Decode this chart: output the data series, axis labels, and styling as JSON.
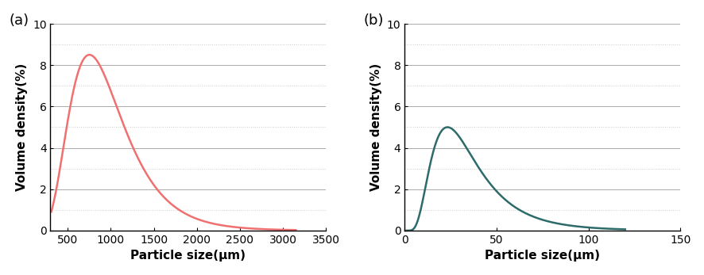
{
  "panel_a": {
    "label": "(a)",
    "color": "#f07070",
    "xlim": [
      300,
      3500
    ],
    "xticks": [
      500,
      1000,
      1500,
      2000,
      2500,
      3000,
      3500
    ],
    "ylim": [
      0,
      10
    ],
    "yticks": [
      0,
      2,
      4,
      6,
      8,
      10
    ],
    "xlabel": "Particle size(μm)",
    "ylabel": "Volume density(%)",
    "mu": 6.8,
    "sigma": 0.42,
    "peak_y": 8.5,
    "x_start": 310,
    "x_end": 3150,
    "n_points": 800
  },
  "panel_b": {
    "label": "(b)",
    "color": "#2d6b6a",
    "xlim": [
      0,
      150
    ],
    "xticks": [
      0,
      50,
      100,
      150
    ],
    "ylim": [
      0,
      10
    ],
    "yticks": [
      0,
      2,
      4,
      6,
      8,
      10
    ],
    "xlabel": "Particle size(μm)",
    "ylabel": "Volume density(%)",
    "mu": 3.45,
    "sigma": 0.55,
    "peak_y": 5.0,
    "x_start": 1,
    "x_end": 120,
    "n_points": 800
  },
  "solid_grid_color": "#aaaaaa",
  "dotted_grid_color": "#cccccc",
  "tick_fontsize": 10,
  "label_fontsize": 11,
  "panel_label_fontsize": 13,
  "background_color": "#ffffff"
}
